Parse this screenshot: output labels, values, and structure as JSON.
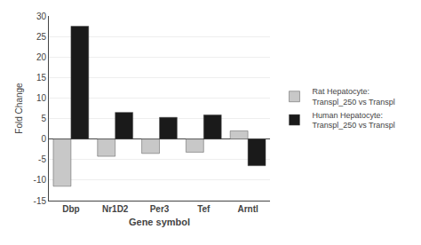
{
  "chart_data": {
    "type": "bar",
    "categories": [
      "Dbp",
      "Nr1D2",
      "Per3",
      "Tef",
      "Arntl"
    ],
    "series": [
      {
        "name": "Rat Hepatocyte:\nTranspl_250 vs Transpl",
        "color": "#c8c8c8",
        "values": [
          -11.5,
          -4.2,
          -3.5,
          -3.2,
          2.0
        ]
      },
      {
        "name": "Human Hepatocyte:\nTranspl_250 vs Transpl",
        "color": "#1a1a1a",
        "values": [
          27.5,
          6.5,
          5.3,
          5.9,
          -6.5
        ]
      }
    ],
    "xlabel": "Gene symbol",
    "ylabel": "Fold Change",
    "ylim": [
      -15,
      30
    ],
    "yticks": [
      -15,
      -10,
      -5,
      0,
      5,
      10,
      15,
      20,
      25,
      30
    ],
    "grid": true,
    "legend": "right"
  }
}
